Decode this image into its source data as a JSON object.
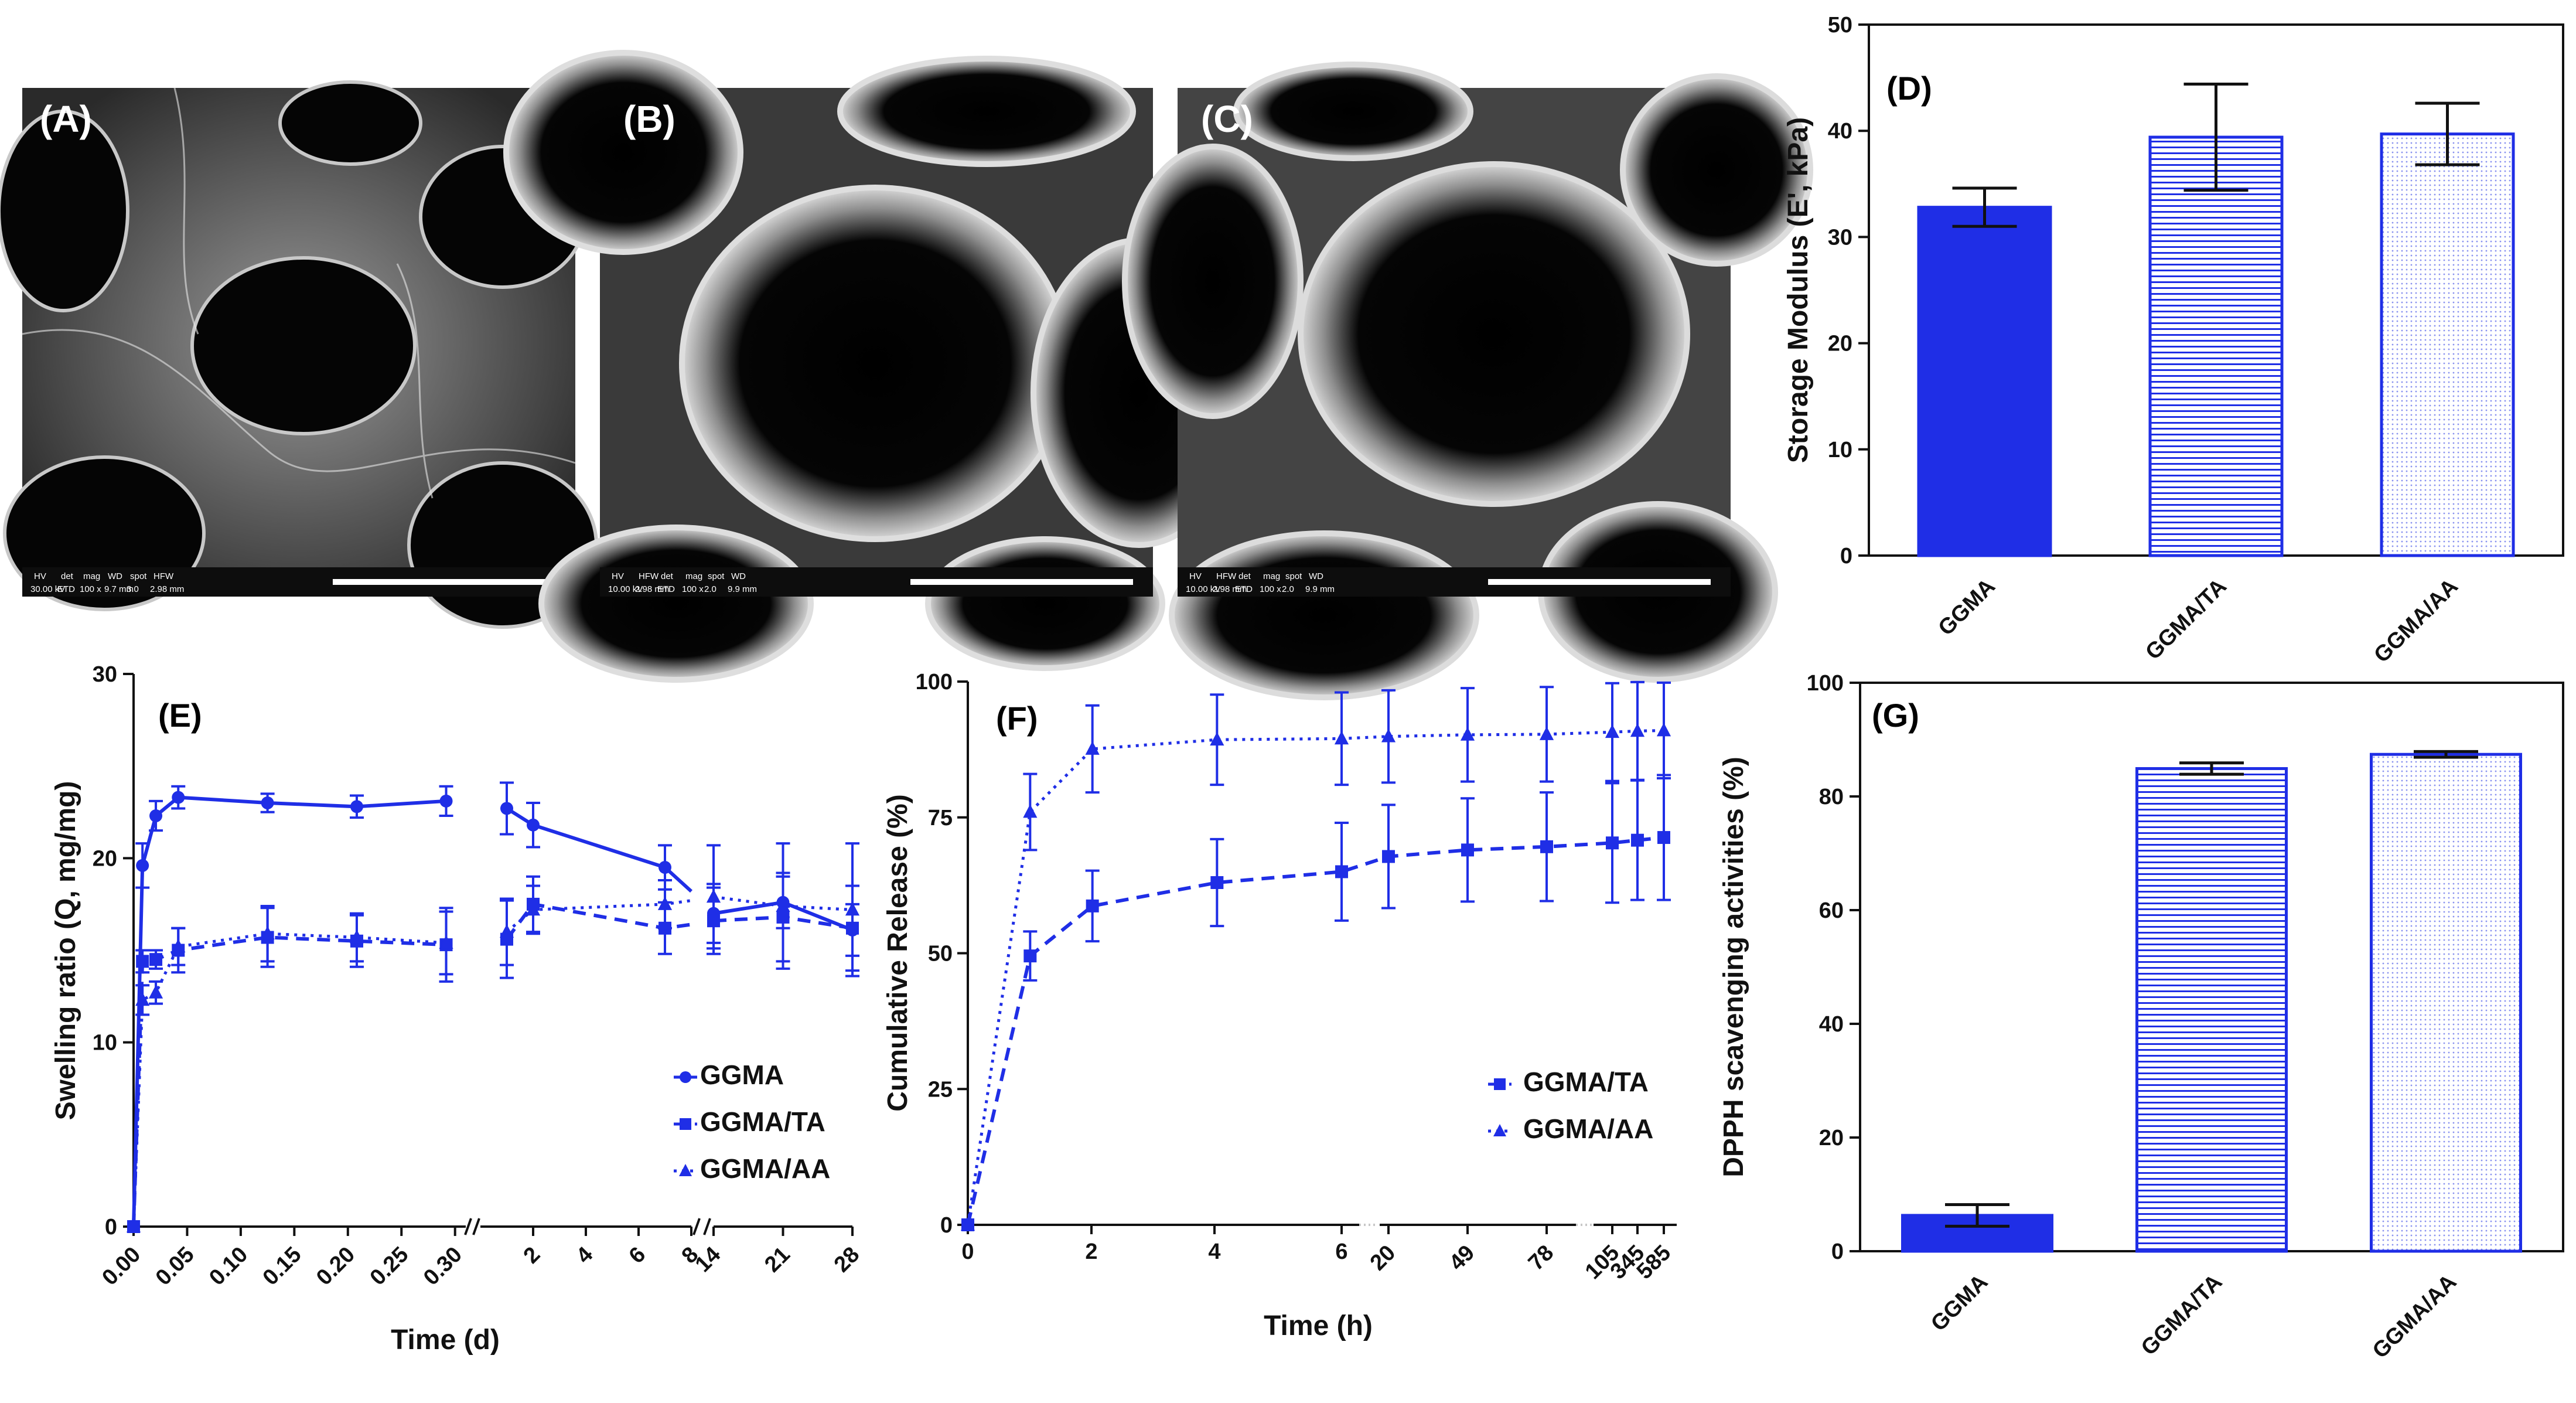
{
  "colors": {
    "series": "#1f2ee6",
    "axis": "#111111",
    "sem_bg": "#0d0d0d"
  },
  "sem_panels": [
    {
      "label": "(A)",
      "hud": [
        "HV",
        "det",
        "mag",
        "WD",
        "spot",
        "HFW",
        "30.00 kV",
        "ETD",
        "100 x",
        "9.7 mm",
        "3.0",
        "2.98 mm"
      ]
    },
    {
      "label": "(B)",
      "hud": [
        "HV",
        "HFW",
        "det",
        "mag",
        "spot",
        "WD",
        "10.00 kV",
        "2.98 mm",
        "ETD",
        "100 x",
        "2.0",
        "9.9 mm"
      ]
    },
    {
      "label": "(C)",
      "hud": [
        "HV",
        "HFW",
        "det",
        "mag",
        "spot",
        "WD",
        "10.00 kV",
        "2.98 mm",
        "ETD",
        "100 x",
        "2.0",
        "9.9 mm"
      ]
    }
  ],
  "chart_data": [
    {
      "id": "D",
      "label": "(D)",
      "type": "bar",
      "categories": [
        "GGMA",
        "GGMA/TA",
        "GGMA/AA"
      ],
      "values": [
        32.8,
        39.4,
        39.7
      ],
      "errors": [
        1.8,
        5.0,
        2.9
      ],
      "fills": [
        "solid",
        "hlines",
        "dots"
      ],
      "ylabel": "Storage Modulus (E', kPa)",
      "ylim": [
        0,
        50
      ],
      "yticks": [
        0,
        10,
        20,
        30,
        40,
        50
      ]
    },
    {
      "id": "E",
      "label": "(E)",
      "type": "line",
      "xlabel": "Time (d)",
      "ylabel": "Swelling ratio (Q, mg/mg)",
      "ylim": [
        0,
        30
      ],
      "yticks": [
        0,
        10,
        20,
        30
      ],
      "segments": [
        {
          "range": [
            0,
            0.31
          ],
          "ticks": [
            0.0,
            0.05,
            0.1,
            0.15,
            0.2,
            0.25,
            0.3
          ],
          "tick_labels": [
            "0.00",
            "0.05",
            "0.10",
            "0.15",
            "0.20",
            "0.25",
            "0.30"
          ]
        },
        {
          "range": [
            0,
            8
          ],
          "ticks": [
            2,
            4,
            6,
            8
          ],
          "tick_labels": [
            "2",
            "4",
            "6",
            "8"
          ]
        },
        {
          "range": [
            14,
            28
          ],
          "ticks": [
            14,
            21,
            28
          ],
          "tick_labels": [
            "14",
            "21",
            "28"
          ]
        }
      ],
      "series": [
        {
          "name": "GGMA",
          "marker": "circle",
          "dash": "solid",
          "points": [
            [
              0,
              0,
              0,
              0
            ],
            [
              0,
              0.0083,
              19.6,
              1.2
            ],
            [
              0,
              0.0208,
              22.3,
              0.8
            ],
            [
              0,
              0.0417,
              23.3,
              0.6
            ],
            [
              0,
              0.125,
              23.0,
              0.5
            ],
            [
              0,
              0.2083,
              22.8,
              0.6
            ],
            [
              0,
              0.2917,
              23.1,
              0.8
            ],
            [
              1,
              1,
              22.7,
              1.4
            ],
            [
              1,
              2,
              21.8,
              1.2
            ],
            [
              1,
              7,
              19.5,
              1.2
            ],
            [
              1,
              8,
              18.2,
              0
            ],
            [
              2,
              14,
              17.0,
              1.6
            ],
            [
              2,
              21,
              17.6,
              1.4
            ],
            [
              2,
              28,
              16.1,
              1.4
            ]
          ]
        },
        {
          "name": "GGMA/TA",
          "marker": "square",
          "dash": "dashed",
          "points": [
            [
              0,
              0,
              0,
              0
            ],
            [
              0,
              0.0083,
              14.4,
              0.6
            ],
            [
              0,
              0.0208,
              14.5,
              0.5
            ],
            [
              0,
              0.0417,
              15.0,
              1.2
            ],
            [
              0,
              0.125,
              15.7,
              1.6
            ],
            [
              0,
              0.2083,
              15.5,
              1.4
            ],
            [
              0,
              0.2917,
              15.3,
              2.0
            ],
            [
              1,
              1,
              15.6,
              2.1
            ],
            [
              1,
              2,
              17.5,
              1.5
            ],
            [
              1,
              7,
              16.2,
              1.4
            ],
            [
              1,
              8,
              16.4,
              0
            ],
            [
              2,
              14,
              16.6,
              1.8
            ],
            [
              2,
              21,
              16.8,
              2.4
            ],
            [
              2,
              28,
              16.2,
              2.3
            ]
          ]
        },
        {
          "name": "GGMA/AA",
          "marker": "triangle",
          "dash": "dotted",
          "points": [
            [
              0,
              0,
              0,
              0
            ],
            [
              0,
              0.0083,
              12.3,
              0.8
            ],
            [
              0,
              0.0208,
              12.7,
              0.6
            ],
            [
              0,
              0.0417,
              15.2,
              1.0
            ],
            [
              0,
              0.125,
              15.9,
              1.5
            ],
            [
              0,
              0.2083,
              15.7,
              1.3
            ],
            [
              0,
              0.2917,
              15.4,
              1.7
            ],
            [
              1,
              1,
              16.0,
              1.8
            ],
            [
              1,
              2,
              17.2,
              1.3
            ],
            [
              1,
              7,
              17.5,
              1.3
            ],
            [
              1,
              8,
              17.7,
              0
            ],
            [
              2,
              14,
              17.9,
              2.8
            ],
            [
              2,
              21,
              17.4,
              3.4
            ],
            [
              2,
              28,
              17.2,
              3.6
            ]
          ]
        }
      ],
      "legend": [
        "GGMA",
        "GGMA/TA",
        "GGMA/AA"
      ]
    },
    {
      "id": "F",
      "label": "(F)",
      "type": "line",
      "xlabel": "Time (h)",
      "ylabel": "Cumulative Release (%)",
      "ylim": [
        0,
        100
      ],
      "yticks": [
        0,
        25,
        50,
        75,
        100
      ],
      "x_ticks": [
        "0",
        "2",
        "4",
        "6",
        "20",
        "49",
        "78",
        "105",
        "345",
        "585"
      ],
      "series": [
        {
          "name": "GGMA/TA",
          "marker": "square",
          "dash": "dashed",
          "points": [
            [
              0,
              0,
              0
            ],
            [
              1,
              49.5,
              4.5
            ],
            [
              2,
              58.7,
              6.5
            ],
            [
              4,
              63.0,
              8.0
            ],
            [
              6,
              65.0,
              9.0
            ],
            [
              20,
              67.8,
              9.5
            ],
            [
              49,
              69.0,
              9.5
            ],
            [
              78,
              69.6,
              10.0
            ],
            [
              105,
              70.3,
              11.0
            ],
            [
              345,
              70.8,
              11.0
            ],
            [
              585,
              71.3,
              11.5
            ]
          ]
        },
        {
          "name": "GGMA/AA",
          "marker": "triangle",
          "dash": "dotted",
          "points": [
            [
              0,
              0,
              0
            ],
            [
              1,
              76.0,
              7.0
            ],
            [
              2,
              87.6,
              8.0
            ],
            [
              4,
              89.3,
              8.3
            ],
            [
              6,
              89.5,
              8.5
            ],
            [
              20,
              89.9,
              8.5
            ],
            [
              49,
              90.2,
              8.6
            ],
            [
              78,
              90.3,
              8.7
            ],
            [
              105,
              90.7,
              9.0
            ],
            [
              345,
              90.9,
              9.0
            ],
            [
              585,
              91.0,
              8.8
            ]
          ]
        }
      ],
      "legend": [
        "GGMA/TA",
        "GGMA/AA"
      ]
    },
    {
      "id": "G",
      "label": "(G)",
      "type": "bar",
      "categories": [
        "GGMA",
        "GGMA/TA",
        "GGMA/AA"
      ],
      "values": [
        6.3,
        84.9,
        87.4
      ],
      "errors": [
        1.9,
        1.0,
        0.5
      ],
      "fills": [
        "solid",
        "hlines",
        "dots"
      ],
      "ylabel": "DPPH scavenging activities (%)",
      "ylim": [
        0,
        100
      ],
      "yticks": [
        0,
        20,
        40,
        60,
        80,
        100
      ]
    }
  ]
}
